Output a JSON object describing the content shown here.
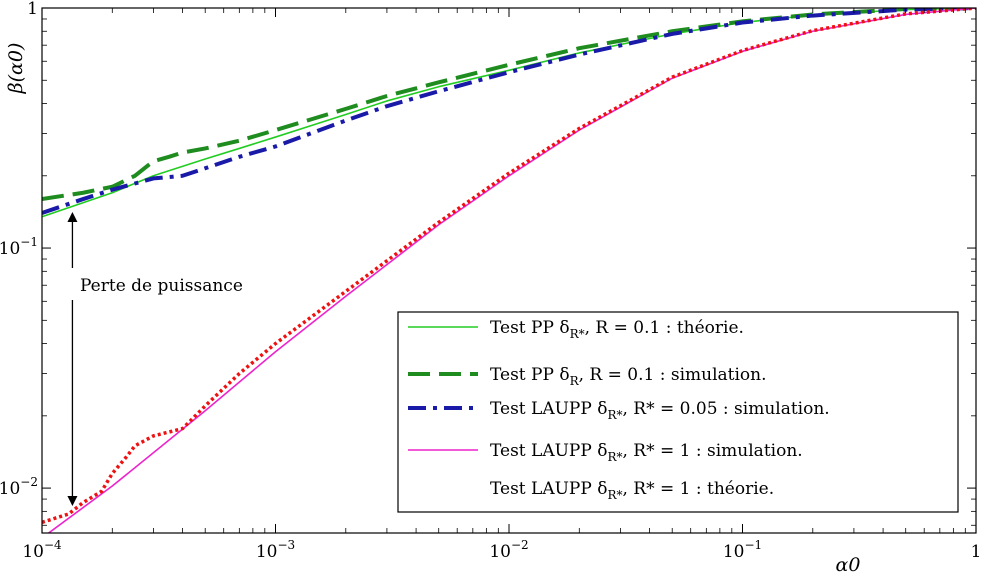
{
  "chart_data": {
    "type": "line",
    "xscale": "log",
    "yscale": "log",
    "xlim": [
      0.0001,
      1
    ],
    "ylim": [
      0.0065,
      1
    ],
    "xlabel": "α0",
    "ylabel": "β(α0)",
    "xticks": [
      {
        "value": 0.0001,
        "base": "10",
        "exp": "−4"
      },
      {
        "value": 0.001,
        "base": "10",
        "exp": "−3"
      },
      {
        "value": 0.01,
        "base": "10",
        "exp": "−2"
      },
      {
        "value": 0.1,
        "base": "10",
        "exp": "−1"
      },
      {
        "value": 1,
        "base": "1",
        "exp": ""
      }
    ],
    "yticks": [
      {
        "value": 0.01,
        "base": "10",
        "exp": "−2"
      },
      {
        "value": 0.1,
        "base": "10",
        "exp": "−1"
      },
      {
        "value": 1,
        "base": "1",
        "exp": ""
      }
    ],
    "grid": false,
    "legend_position": "bottom-right",
    "annotation": {
      "text": "Perte de puissance",
      "x": 0.000135,
      "y_top": 0.14,
      "y_bottom": 0.0085
    },
    "series": [
      {
        "name": "Test PP δR*, R = 0.1 : théorie.",
        "legend": {
          "pre": "Test PP δ",
          "sub": "R*",
          "mid": ", R = 0.1 : théorie."
        },
        "color": "#22cc22",
        "style": "solid",
        "width": 1.6,
        "x": [
          0.0001,
          0.0002,
          0.0003,
          0.0005,
          0.0007,
          0.001,
          0.002,
          0.003,
          0.005,
          0.01,
          0.02,
          0.05,
          0.1,
          0.2,
          0.5,
          1
        ],
        "y": [
          0.135,
          0.17,
          0.2,
          0.235,
          0.26,
          0.29,
          0.36,
          0.41,
          0.47,
          0.55,
          0.65,
          0.78,
          0.87,
          0.935,
          0.985,
          1.0
        ]
      },
      {
        "name": "Test PP δR, R = 0.1 : simulation.",
        "legend": {
          "pre": "Test PP δ",
          "sub": "R",
          "mid": ", R = 0.1 : simulation."
        },
        "color": "#1e8c1e",
        "style": "dashed",
        "width": 4,
        "x": [
          0.0001,
          0.00015,
          0.0002,
          0.00025,
          0.0003,
          0.00035,
          0.0004,
          0.0005,
          0.0007,
          0.001,
          0.002,
          0.003,
          0.005,
          0.01,
          0.02,
          0.05,
          0.1,
          0.2,
          0.5,
          1
        ],
        "y": [
          0.16,
          0.17,
          0.18,
          0.2,
          0.23,
          0.24,
          0.25,
          0.26,
          0.28,
          0.31,
          0.38,
          0.43,
          0.49,
          0.58,
          0.68,
          0.8,
          0.88,
          0.94,
          0.99,
          1.0
        ]
      },
      {
        "name": "Test LAUPP δR*, R* = 0.05 : simulation.",
        "legend": {
          "pre": "Test LAUPP δ",
          "sub": "R*",
          "mid": ", R* = 0.05 : simulation."
        },
        "color": "#1a1aa8",
        "style": "dashdot",
        "width": 4,
        "x": [
          0.0001,
          0.00015,
          0.0002,
          0.0003,
          0.0004,
          0.0005,
          0.0007,
          0.001,
          0.002,
          0.003,
          0.005,
          0.01,
          0.02,
          0.05,
          0.1,
          0.2,
          0.5,
          1
        ],
        "y": [
          0.14,
          0.16,
          0.175,
          0.195,
          0.2,
          0.215,
          0.24,
          0.265,
          0.34,
          0.39,
          0.45,
          0.54,
          0.64,
          0.78,
          0.87,
          0.93,
          0.985,
          1.0
        ]
      },
      {
        "name": "Test LAUPP δR*, R* = 1 : simulation.",
        "legend": {
          "pre": "Test LAUPP δ",
          "sub": "R*",
          "mid": ", R* = 1 : simulation."
        },
        "color": "#ee22cc",
        "style": "solid",
        "width": 1.6,
        "x": [
          0.0001,
          0.0002,
          0.0005,
          0.001,
          0.002,
          0.005,
          0.01,
          0.02,
          0.05,
          0.1,
          0.2,
          0.5,
          1
        ],
        "y": [
          0.0062,
          0.0102,
          0.021,
          0.037,
          0.063,
          0.125,
          0.2,
          0.31,
          0.51,
          0.66,
          0.8,
          0.94,
          1.0
        ]
      },
      {
        "name": "Test LAUPP δR*, R* = 1 : théorie.",
        "legend": {
          "pre": "Test LAUPP δ",
          "sub": "R*",
          "mid": ", R* = 1 : théorie."
        },
        "color": "#ee1111",
        "style": "dotted",
        "width": 3.5,
        "x": [
          0.0001,
          0.00013,
          0.00015,
          0.00018,
          0.0002,
          0.00023,
          0.00025,
          0.0003,
          0.0004,
          0.0005,
          0.0007,
          0.001,
          0.002,
          0.005,
          0.01,
          0.02,
          0.05,
          0.1,
          0.2,
          0.5,
          1
        ],
        "y": [
          0.0072,
          0.0078,
          0.0087,
          0.0097,
          0.0115,
          0.0135,
          0.015,
          0.0165,
          0.0177,
          0.022,
          0.03,
          0.04,
          0.066,
          0.128,
          0.205,
          0.315,
          0.515,
          0.665,
          0.805,
          0.945,
          1.0
        ]
      }
    ]
  }
}
